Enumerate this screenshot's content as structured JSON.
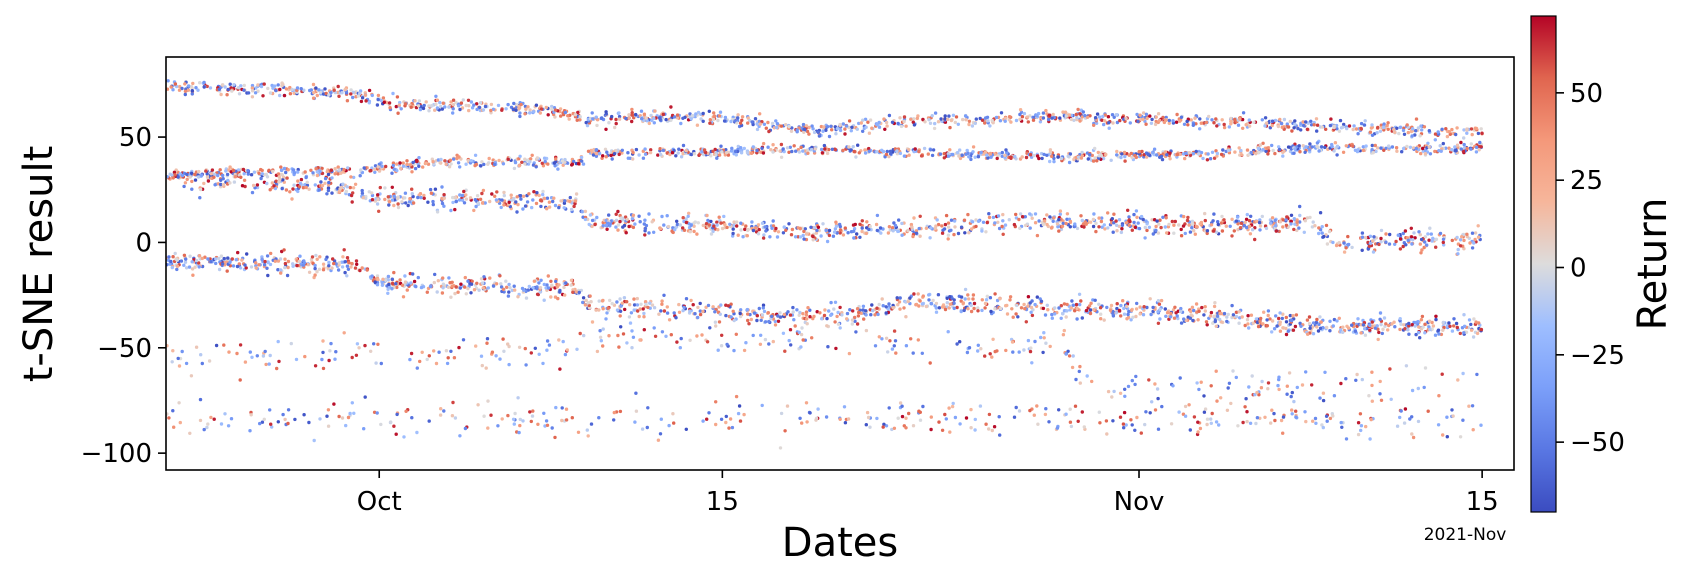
{
  "chart_data": {
    "type": "scatter",
    "title": "",
    "xlabel": "Dates",
    "ylabel": "t-SNE result",
    "x_unit": "days since 2021-09-23",
    "xlim": [
      -0.7,
      54.3
    ],
    "ylim": [
      -108,
      88
    ],
    "x_ticks": [
      {
        "value": 8,
        "label": "Oct"
      },
      {
        "value": 22,
        "label": "15"
      },
      {
        "value": 39,
        "label": "Nov"
      },
      {
        "value": 53,
        "label": "15"
      }
    ],
    "x_offset_label": "2021-Nov",
    "y_ticks": [
      {
        "value": 50,
        "label": "50"
      },
      {
        "value": 0,
        "label": "0"
      },
      {
        "value": -50,
        "label": "−50"
      },
      {
        "value": -100,
        "label": "−100"
      }
    ],
    "colorbar": {
      "label": "Return",
      "colormap": "coolwarm",
      "range": [
        -70,
        72
      ],
      "ticks": [
        {
          "value": 50,
          "label": "50"
        },
        {
          "value": 25,
          "label": "25"
        },
        {
          "value": 0,
          "label": "0"
        },
        {
          "value": -25,
          "label": "−25"
        },
        {
          "value": -50,
          "label": "−50"
        }
      ]
    },
    "x_range_of_points": [
      -2,
      53
    ],
    "clusters": [
      {
        "segments": [
          [
            -2,
            75
          ],
          [
            2,
            73
          ],
          [
            7,
            71
          ],
          [
            8.5,
            66
          ],
          [
            13,
            64
          ],
          [
            15.5,
            62
          ],
          [
            16.5,
            58
          ],
          [
            21,
            60
          ],
          [
            26,
            53
          ],
          [
            30,
            58
          ],
          [
            35,
            60
          ],
          [
            41,
            58
          ],
          [
            47,
            55
          ],
          [
            51,
            52
          ],
          [
            53,
            53
          ]
        ],
        "spread": 2.5,
        "density": 22
      },
      {
        "segments": [
          [
            -2,
            32
          ],
          [
            7,
            34
          ],
          [
            10,
            38
          ],
          [
            16,
            38
          ],
          [
            16.5,
            42
          ],
          [
            26,
            44
          ],
          [
            32,
            42
          ],
          [
            36,
            41
          ],
          [
            41,
            42
          ],
          [
            47,
            45
          ],
          [
            51,
            44
          ],
          [
            53,
            45
          ]
        ],
        "spread": 2,
        "density": 22
      },
      {
        "segments": [
          [
            0,
            28
          ],
          [
            5,
            28
          ],
          [
            7,
            24
          ],
          [
            8,
            21
          ],
          [
            16,
            19
          ],
          [
            16.5,
            10
          ],
          [
            21,
            8
          ],
          [
            27,
            5
          ],
          [
            34,
            10
          ],
          [
            41,
            8
          ],
          [
            46,
            10
          ],
          [
            47,
            0
          ],
          [
            53,
            2
          ]
        ],
        "spread": 4,
        "density": 24
      },
      {
        "segments": [
          [
            -2,
            -8
          ],
          [
            7,
            -11
          ],
          [
            8,
            -19
          ],
          [
            16,
            -22
          ],
          [
            16.5,
            -30
          ],
          [
            21,
            -32
          ],
          [
            27,
            -35
          ],
          [
            30,
            -28
          ],
          [
            41,
            -34
          ],
          [
            47,
            -40
          ],
          [
            53,
            -40
          ]
        ],
        "spread": 4,
        "density": 26
      },
      {
        "segments": [
          [
            -2,
            -55
          ],
          [
            16,
            -52
          ],
          [
            16.5,
            -45
          ],
          [
            36,
            -50
          ],
          [
            37,
            -68
          ],
          [
            53,
            -67
          ]
        ],
        "spread": 7,
        "density": 6
      },
      {
        "segments": [
          [
            -2,
            -84
          ],
          [
            53,
            -84
          ]
        ],
        "spread": 7,
        "density": 7
      }
    ],
    "returns_distribution": "uniform between -70 and 72, random per point"
  }
}
